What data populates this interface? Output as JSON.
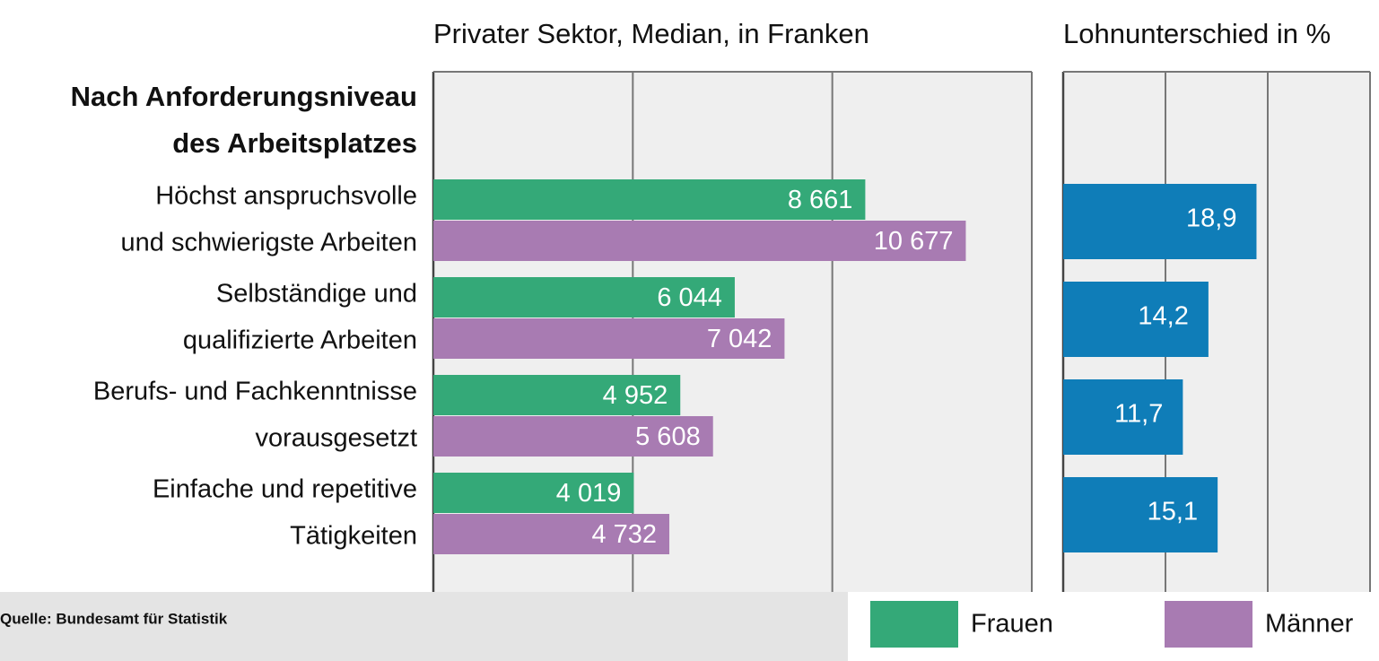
{
  "chart_data": [
    {
      "type": "hbar",
      "title": "Privater Sektor, Median, in Franken",
      "group_title": [
        "Nach Anforderungsniveau",
        "des Arbeitsplatzes"
      ],
      "categories": [
        [
          "Höchst anspruchsvolle",
          "und schwierigste Arbeiten"
        ],
        [
          "Selbständige und",
          "qualifizierte Arbeiten"
        ],
        [
          "Berufs- und Fachkenntnisse",
          "vorausgesetzt"
        ],
        [
          "Einfache und repetitive",
          "Tätigkeiten"
        ]
      ],
      "series": [
        {
          "name": "Frauen",
          "color": "#34a978",
          "values": [
            8661,
            6044,
            4952,
            4019
          ],
          "value_labels": [
            "8 661",
            "6 044",
            "4 952",
            "4 019"
          ]
        },
        {
          "name": "Männer",
          "color": "#a87bb2",
          "values": [
            10677,
            7042,
            5608,
            4732
          ],
          "value_labels": [
            "10 677",
            "7 042",
            "5 608",
            "4 732"
          ]
        }
      ],
      "xlim": [
        0,
        12000
      ],
      "xticks": [
        0,
        4000,
        8000,
        12000
      ],
      "grid": true,
      "legend": "bottom-right",
      "source": "Quelle: Bundesamt für Statistik"
    },
    {
      "type": "hbar",
      "title": "Lohnunterschied in %",
      "values": [
        18.9,
        14.2,
        11.7,
        15.1
      ],
      "value_labels": [
        "18,9",
        "14,2",
        "11,7",
        "15,1"
      ],
      "color": "#0f7db8",
      "xlim": [
        0,
        30
      ],
      "xticks": [
        0,
        10,
        20,
        30
      ],
      "grid": true
    }
  ]
}
